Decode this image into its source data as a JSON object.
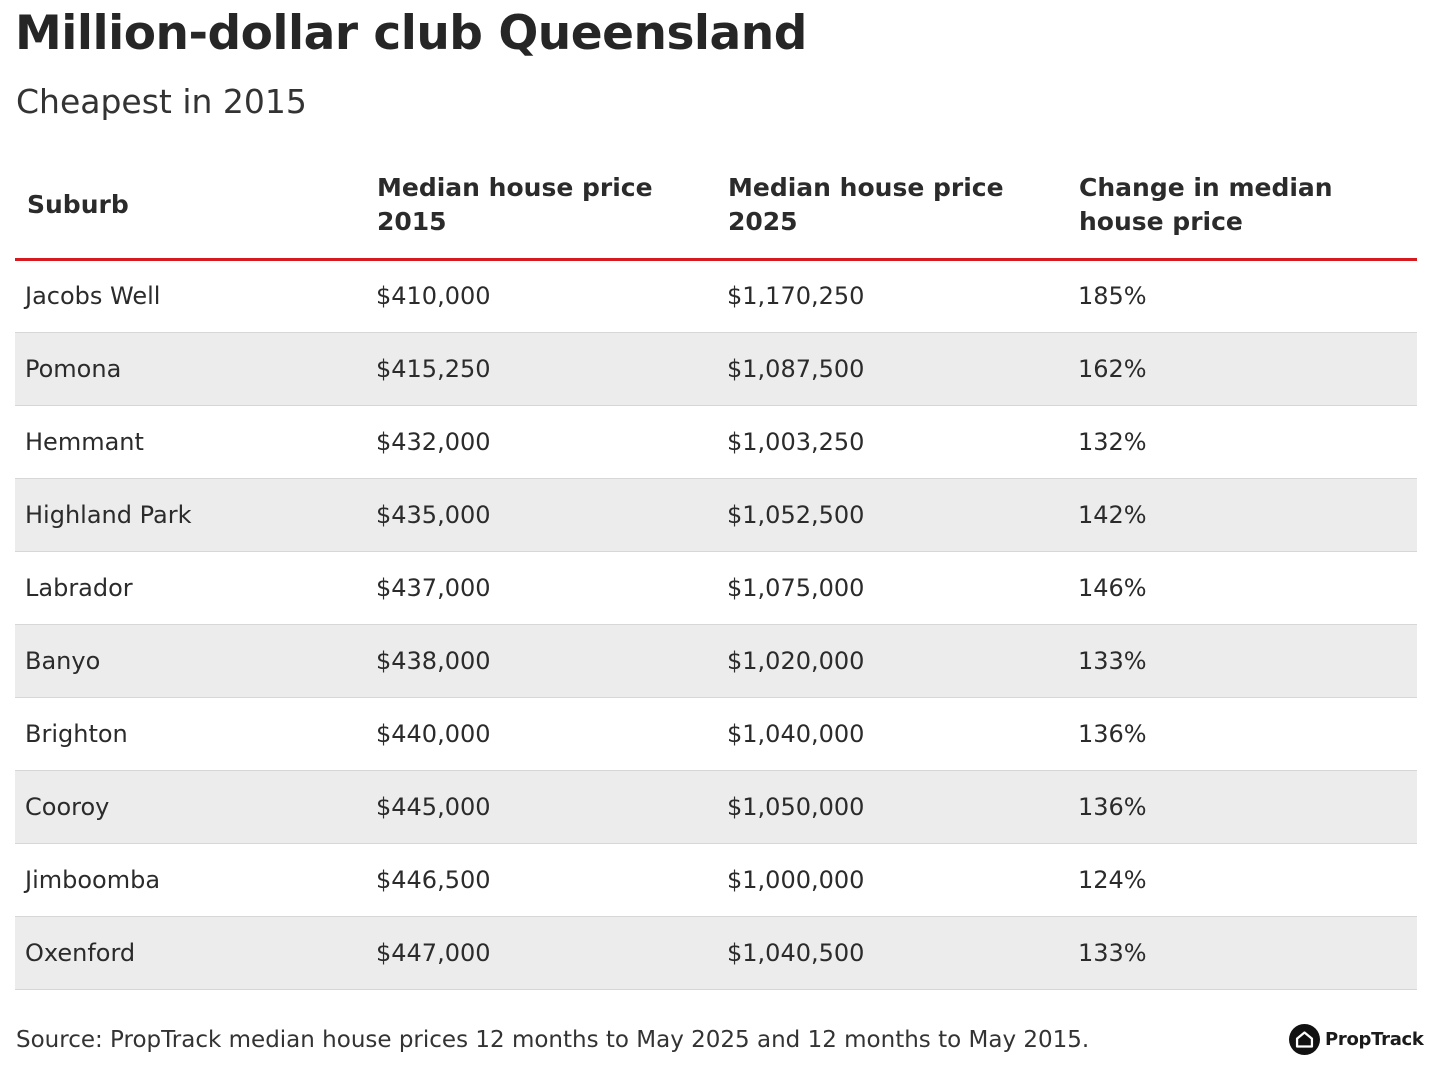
{
  "chart_data": {
    "type": "table",
    "title": "Million-dollar club Queensland",
    "subtitle": "Cheapest in 2015",
    "columns": [
      "Suburb",
      "Median house price 2015",
      "Median house price 2025",
      "Change in median house price"
    ],
    "rows": [
      [
        "Jacobs Well",
        "$410,000",
        "$1,170,250",
        "185%"
      ],
      [
        "Pomona",
        "$415,250",
        "$1,087,500",
        "162%"
      ],
      [
        "Hemmant",
        "$432,000",
        "$1,003,250",
        "132%"
      ],
      [
        "Highland Park",
        "$435,000",
        "$1,052,500",
        "142%"
      ],
      [
        "Labrador",
        "$437,000",
        "$1,075,000",
        "146%"
      ],
      [
        "Banyo",
        "$438,000",
        "$1,020,000",
        "133%"
      ],
      [
        "Brighton",
        "$440,000",
        "$1,040,000",
        "136%"
      ],
      [
        "Cooroy",
        "$445,000",
        "$1,050,000",
        "136%"
      ],
      [
        "Jimboomba",
        "$446,500",
        "$1,000,000",
        "124%"
      ],
      [
        "Oxenford",
        "$447,000",
        "$1,040,500",
        "133%"
      ]
    ],
    "source": "Source: PropTrack median house prices 12 months to May 2025 and 12 months to May 2015.",
    "logo_text": "PropTrack",
    "logo_icon": "house-icon",
    "colors": {
      "header_rule": "#d71920",
      "zebra_row": "#ececec",
      "row_divider": "#d7d7d7",
      "text": "#2b2b2b"
    }
  }
}
